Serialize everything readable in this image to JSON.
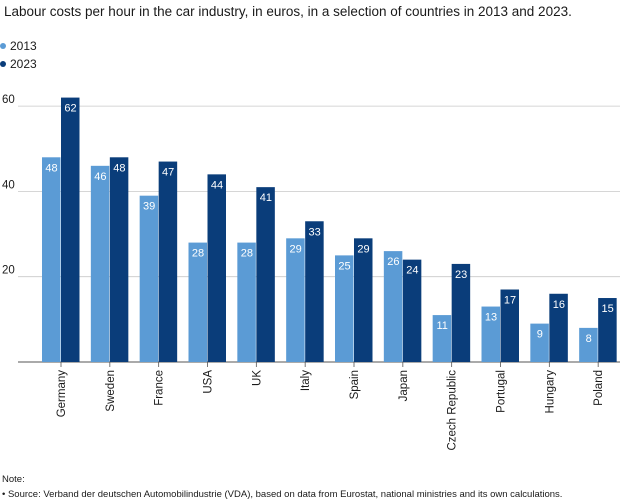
{
  "chart_data": {
    "type": "bar",
    "title": "Labour costs per hour in the car industry, in euros, in a selection of countries in 2013 and 2023.",
    "categories": [
      "Germany",
      "Sweden",
      "France",
      "USA",
      "UK",
      "Italy",
      "Spain",
      "Japan",
      "Czech Republic",
      "Portugal",
      "Hungary",
      "Poland"
    ],
    "series": [
      {
        "name": "2013",
        "color": "#5b9bd5",
        "values": [
          48,
          46,
          39,
          28,
          28,
          29,
          25,
          26,
          11,
          13,
          9,
          8
        ]
      },
      {
        "name": "2023",
        "color": "#0a3d7a",
        "values": [
          62,
          48,
          47,
          44,
          41,
          33,
          29,
          24,
          23,
          17,
          16,
          15
        ]
      }
    ],
    "yticks": [
      20,
      40,
      60
    ],
    "ylim": [
      0,
      68
    ],
    "grid": true,
    "legend_position": "top-left",
    "xlabel": "",
    "ylabel": ""
  },
  "notes": {
    "label": "Note:",
    "source": "• Source: Verband der deutschen Automobilindustrie (VDA), based on data from Eurostat, national ministries and its own calculations."
  }
}
